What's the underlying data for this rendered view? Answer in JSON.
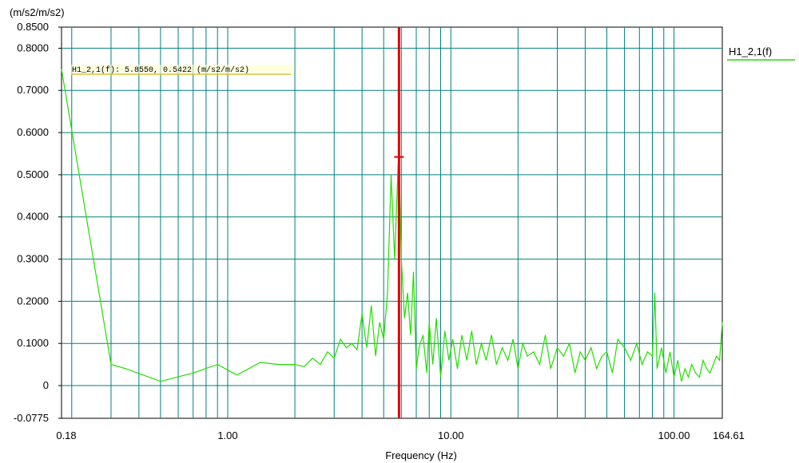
{
  "chart_data": {
    "type": "line",
    "y_unit": "(m/s2/m/s2)",
    "xlabel": "Frequency (Hz)",
    "x_scale": "log",
    "xlim": [
      0.18,
      164.61
    ],
    "ylim": [
      -0.0775,
      0.85
    ],
    "x_ticks": [
      {
        "value": 0.18,
        "label": "0.18"
      },
      {
        "value": 1.0,
        "label": "1.00"
      },
      {
        "value": 10.0,
        "label": "10.00"
      },
      {
        "value": 100.0,
        "label": "100.00"
      },
      {
        "value": 164.61,
        "label": "164.61"
      }
    ],
    "y_ticks": [
      {
        "value": 0.85,
        "label": "0.8500"
      },
      {
        "value": 0.8,
        "label": "0.8000"
      },
      {
        "value": 0.7,
        "label": "0.7000"
      },
      {
        "value": 0.6,
        "label": "0.6000"
      },
      {
        "value": 0.5,
        "label": "0.5000"
      },
      {
        "value": 0.4,
        "label": "0.4000"
      },
      {
        "value": 0.3,
        "label": "0.3000"
      },
      {
        "value": 0.2,
        "label": "0.2000"
      },
      {
        "value": 0.1,
        "label": "0.1000"
      },
      {
        "value": 0.0,
        "label": "0"
      },
      {
        "value": -0.0775,
        "label": "-0.0775"
      }
    ],
    "grid": true,
    "legend_position": "top-right",
    "cursor": {
      "x": 5.855,
      "y": 0.5422,
      "label": "H1_2,1(f): 5.8550, 0.5422 (m/s2/m/s2)",
      "color": "#e00000"
    },
    "series": [
      {
        "name": "H1_2,1(f)",
        "color": "#22dd00",
        "x": [
          0.18,
          0.3,
          0.35,
          0.5,
          0.7,
          0.9,
          1.1,
          1.4,
          1.7,
          2.0,
          2.2,
          2.4,
          2.6,
          2.8,
          3.0,
          3.2,
          3.4,
          3.6,
          3.8,
          4.0,
          4.2,
          4.4,
          4.6,
          4.8,
          5.0,
          5.2,
          5.4,
          5.6,
          5.8,
          5.855,
          6.0,
          6.2,
          6.4,
          6.6,
          6.8,
          7.0,
          7.2,
          7.5,
          7.8,
          8.0,
          8.3,
          8.6,
          9.0,
          9.4,
          9.8,
          10.2,
          10.7,
          11.2,
          11.8,
          12.4,
          13.0,
          13.7,
          14.4,
          15.2,
          16.0,
          17.0,
          18.0,
          19.0,
          20.0,
          21.0,
          22.0,
          23.5,
          25.0,
          26.5,
          28.0,
          30.0,
          32.0,
          34.0,
          36.0,
          38.0,
          40.0,
          42.5,
          45.0,
          47.5,
          50.0,
          53.0,
          56.0,
          60.0,
          64.0,
          68.0,
          72.0,
          76.0,
          80.0,
          82.0,
          84.0,
          88.0,
          92.0,
          96.0,
          100.0,
          104.0,
          108.0,
          112.0,
          116.0,
          120.0,
          125.0,
          130.0,
          135.0,
          140.0,
          145.0,
          150.0,
          155.0,
          160.0,
          164.61
        ],
        "y": [
          0.75,
          0.05,
          0.04,
          0.01,
          0.03,
          0.05,
          0.025,
          0.055,
          0.05,
          0.05,
          0.045,
          0.065,
          0.05,
          0.08,
          0.065,
          0.11,
          0.09,
          0.1,
          0.085,
          0.17,
          0.09,
          0.19,
          0.07,
          0.15,
          0.11,
          0.22,
          0.5,
          0.3,
          0.52,
          0.5422,
          0.3,
          0.16,
          0.22,
          0.12,
          0.27,
          0.04,
          0.09,
          0.12,
          0.03,
          0.15,
          0.05,
          0.16,
          0.02,
          0.13,
          0.06,
          0.11,
          0.04,
          0.12,
          0.06,
          0.13,
          0.05,
          0.1,
          0.06,
          0.12,
          0.05,
          0.09,
          0.06,
          0.11,
          0.04,
          0.1,
          0.07,
          0.08,
          0.05,
          0.12,
          0.04,
          0.09,
          0.07,
          0.1,
          0.03,
          0.08,
          0.06,
          0.09,
          0.04,
          0.07,
          0.08,
          0.03,
          0.11,
          0.09,
          0.06,
          0.1,
          0.05,
          0.08,
          0.07,
          0.22,
          0.04,
          0.09,
          0.03,
          0.08,
          0.02,
          0.06,
          0.01,
          0.04,
          0.02,
          0.05,
          0.03,
          0.02,
          0.06,
          0.04,
          0.03,
          0.05,
          0.07,
          0.06,
          0.15
        ]
      }
    ]
  }
}
